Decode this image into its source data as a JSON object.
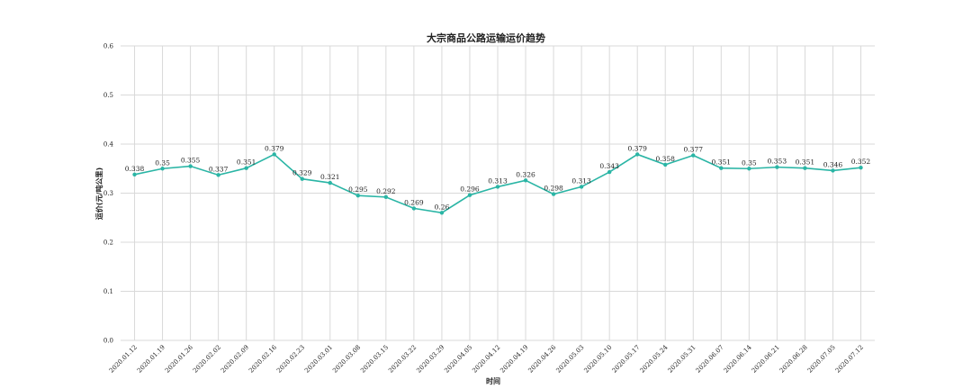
{
  "chart_data": {
    "type": "line",
    "title": "大宗商品公路运输运价趋势",
    "xlabel": "时间",
    "ylabel": "运价(元/吨公里)",
    "ylim": [
      0,
      0.6
    ],
    "yticks": [
      "0.0",
      "0.1",
      "0.2",
      "0.3",
      "0.4",
      "0.5",
      "0.6"
    ],
    "grid": true,
    "categories": [
      "2020.01.12",
      "2020.01.19",
      "2020.01.26",
      "2020.02.02",
      "2020.02.09",
      "2020.02.16",
      "2020.02.23",
      "2020.03.01",
      "2020.03.08",
      "2020.03.15",
      "2020.03.22",
      "2020.03.29",
      "2020.04.05",
      "2020.04.12",
      "2020.04.19",
      "2020.04.26",
      "2020.05.03",
      "2020.05.10",
      "2020.05.17",
      "2020.05.24",
      "2020.05.31",
      "2020.06.07",
      "2020.06.14",
      "2020.06.21",
      "2020.06.28",
      "2020.07.05",
      "2020.07.12"
    ],
    "series": [
      {
        "values": [
          0.338,
          0.35,
          0.355,
          0.337,
          0.351,
          0.379,
          0.329,
          0.321,
          0.295,
          0.292,
          0.269,
          0.26,
          0.296,
          0.313,
          0.326,
          0.298,
          0.313,
          0.343,
          0.379,
          0.358,
          0.377,
          0.351,
          0.35,
          0.353,
          0.351,
          0.346,
          0.352
        ],
        "labels": [
          "0.338",
          "0.35",
          "0.355",
          "0.337",
          "0.351",
          "0.379",
          "0.329",
          "0.321",
          "0.295",
          "0.292",
          "0.269",
          "0.26",
          "0.296",
          "0.313",
          "0.326",
          "0.298",
          "0.313",
          "0.343",
          "0.379",
          "0.358",
          "0.377",
          "0.351",
          "0.35",
          "0.353",
          "0.351",
          "0.346",
          "0.352"
        ],
        "color": "#2ab5a5"
      }
    ]
  }
}
